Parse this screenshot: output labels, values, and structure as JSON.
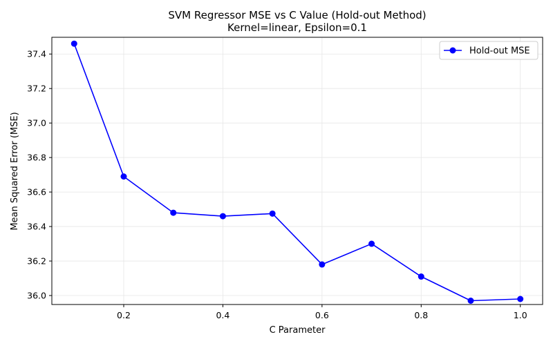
{
  "chart_data": {
    "type": "line",
    "title": "SVM Regressor MSE vs C Value (Hold-out Method)",
    "subtitle": "Kernel=linear, Epsilon=0.1",
    "xlabel": "C Parameter",
    "ylabel": "Mean Squared Error (MSE)",
    "xlim": [
      0.055,
      1.045
    ],
    "ylim": [
      35.948,
      37.497
    ],
    "xticks": [
      0.2,
      0.4,
      0.6,
      0.8,
      1.0
    ],
    "xtick_labels": [
      "0.2",
      "0.4",
      "0.6",
      "0.8",
      "1.0"
    ],
    "yticks": [
      36.0,
      36.2,
      36.4,
      36.6,
      36.8,
      37.0,
      37.2,
      37.4
    ],
    "ytick_labels": [
      "36.0",
      "36.2",
      "36.4",
      "36.6",
      "36.8",
      "37.0",
      "37.2",
      "37.4"
    ],
    "grid": true,
    "legend_position": "top-right",
    "series": [
      {
        "name": "Hold-out MSE",
        "color": "#0000ff",
        "marker": "circle",
        "x": [
          0.1,
          0.2,
          0.3,
          0.4,
          0.5,
          0.6,
          0.7,
          0.8,
          0.9,
          1.0
        ],
        "y": [
          37.46,
          36.69,
          36.48,
          36.46,
          36.475,
          36.18,
          36.3,
          36.11,
          35.97,
          35.98
        ]
      }
    ]
  }
}
